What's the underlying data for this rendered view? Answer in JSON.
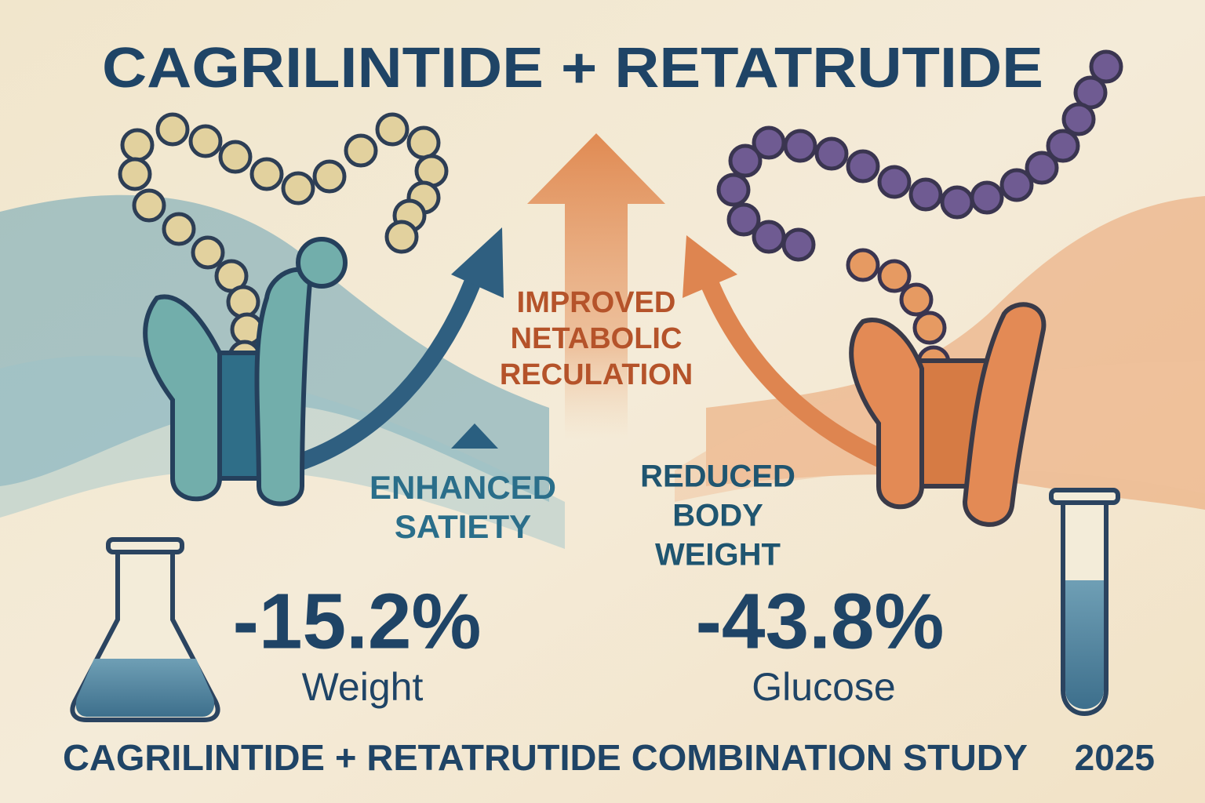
{
  "header": {
    "title": "CAGRILINTIDE + RETATRUTIDE"
  },
  "center_label": {
    "lines": [
      "IMPROVED",
      "NETABOLIC",
      "RECULATION"
    ]
  },
  "left_label": {
    "lines": [
      "ENHANCED",
      "SATIETY"
    ]
  },
  "right_label": {
    "lines": [
      "REDUCED",
      "BODY",
      "WEIGHT"
    ]
  },
  "stats": [
    {
      "value": "-15.2%",
      "label": "Weight"
    },
    {
      "value": "-43.8%",
      "label": "Glucose"
    }
  ],
  "footer": {
    "text": "CAGRILINTIDE + RETATRUTIDE COMBINATION STUDY",
    "year": "2025"
  }
}
